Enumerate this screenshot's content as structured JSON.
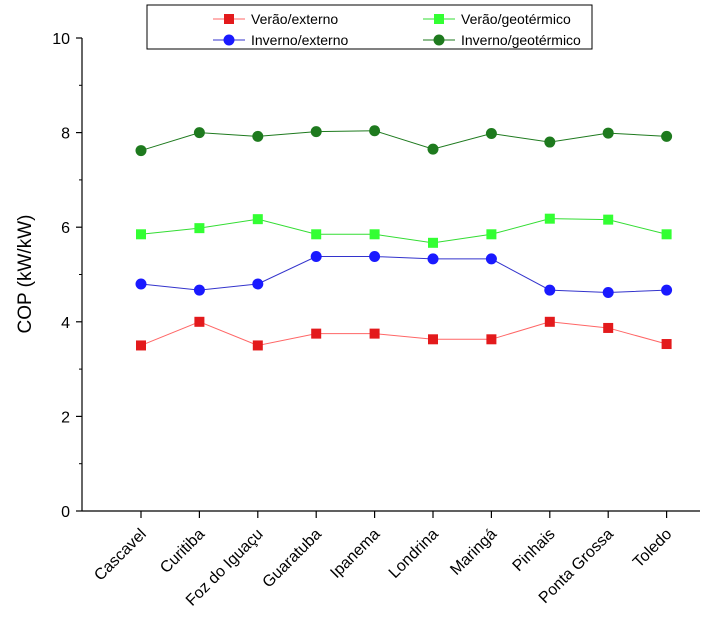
{
  "chart_data": {
    "type": "line",
    "title": "",
    "xlabel": "",
    "ylabel": "COP (kW/kW)",
    "ylim": [
      0,
      10
    ],
    "yticks": [
      0,
      2,
      4,
      6,
      8,
      10
    ],
    "grid": false,
    "legend_position": "top",
    "categories": [
      "Cascavel",
      "Curitiba",
      "Foz do Iguaçu",
      "Guaratuba",
      "Ipanema",
      "Londrina",
      "Maringá",
      "Pinhais",
      "Ponta Grossa",
      "Toledo"
    ],
    "series": [
      {
        "name": "Verão/externo",
        "color": "#e31a1c",
        "line_color": "#ff6666",
        "marker": "square",
        "values": [
          3.5,
          4.0,
          3.5,
          3.75,
          3.75,
          3.63,
          3.63,
          4.0,
          3.87,
          3.53
        ]
      },
      {
        "name": "Verão/geotérmico",
        "color": "#33ff33",
        "line_color": "#33dd33",
        "marker": "square",
        "values": [
          5.85,
          5.98,
          6.17,
          5.85,
          5.85,
          5.67,
          5.85,
          6.18,
          6.16,
          5.85
        ]
      },
      {
        "name": "Inverno/externo",
        "color": "#1a1aff",
        "line_color": "#3333cc",
        "marker": "circle",
        "values": [
          4.8,
          4.67,
          4.8,
          5.38,
          5.38,
          5.33,
          5.33,
          4.67,
          4.62,
          4.67
        ]
      },
      {
        "name": "Inverno/geotérmico",
        "color": "#1e7a1e",
        "line_color": "#1e7a1e",
        "marker": "circle",
        "values": [
          7.62,
          8.0,
          7.92,
          8.02,
          8.04,
          7.65,
          7.98,
          7.8,
          7.99,
          7.92
        ]
      }
    ]
  }
}
